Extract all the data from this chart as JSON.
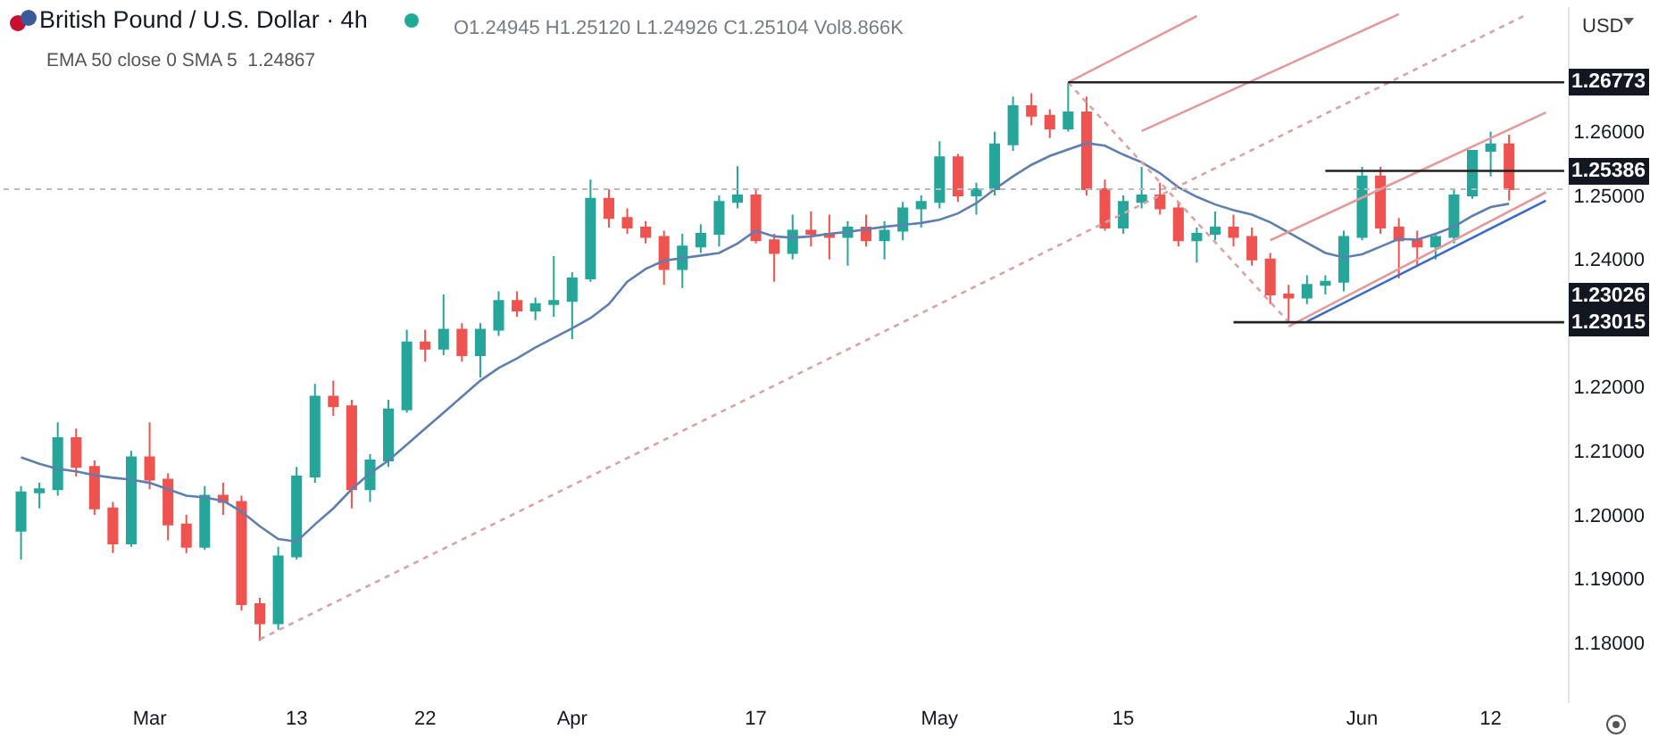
{
  "chart_data": {
    "type": "candlestick",
    "title": "British Pound / U.S. Dollar · 4h",
    "ylabel": "USD",
    "annotations": [
      "O1.24945 H1.25120 L1.24926 C1.25104 Vol8.866K",
      "EMA 50 close 0 SMA 5  1.24867"
    ],
    "categories": [
      null,
      null,
      null,
      null,
      null,
      null,
      null,
      "Mar",
      null,
      null,
      null,
      null,
      null,
      null,
      null,
      "13",
      null,
      null,
      null,
      null,
      null,
      null,
      "22",
      null,
      null,
      null,
      null,
      null,
      null,
      null,
      "Apr",
      null,
      null,
      null,
      null,
      null,
      null,
      null,
      null,
      null,
      "17",
      null,
      null,
      null,
      null,
      null,
      null,
      null,
      null,
      null,
      "May",
      null,
      null,
      null,
      null,
      null,
      null,
      null,
      null,
      null,
      "15",
      null,
      null,
      null,
      null,
      null,
      null,
      null,
      null,
      null,
      null,
      null,
      null,
      "Jun",
      null,
      null,
      null,
      null,
      null,
      null,
      "12",
      null,
      null,
      null,
      null
    ],
    "ohlc": [
      [
        1.1975,
        1.2045,
        1.193,
        1.2035
      ],
      [
        1.2035,
        1.205,
        1.201,
        1.204
      ],
      [
        1.204,
        1.2145,
        1.203,
        1.212
      ],
      [
        1.212,
        1.2135,
        1.206,
        1.2075
      ],
      [
        1.2075,
        1.2085,
        1.2,
        1.201
      ],
      [
        1.201,
        1.202,
        1.194,
        1.1955
      ],
      [
        1.1955,
        1.21,
        1.195,
        1.209
      ],
      [
        1.209,
        1.2145,
        1.204,
        1.2055
      ],
      [
        1.2055,
        1.2065,
        1.196,
        1.1985
      ],
      [
        1.1985,
        1.2,
        1.194,
        1.195
      ],
      [
        1.195,
        1.2045,
        1.1945,
        1.203
      ],
      [
        1.203,
        1.205,
        1.2,
        1.202
      ],
      [
        1.202,
        1.203,
        1.185,
        1.186
      ],
      [
        1.186,
        1.187,
        1.1803,
        1.183
      ],
      [
        1.183,
        1.195,
        1.182,
        1.1935
      ],
      [
        1.1935,
        1.2075,
        1.193,
        1.206
      ],
      [
        1.206,
        1.2205,
        1.205,
        1.2185
      ],
      [
        1.2185,
        1.221,
        1.2155,
        1.217
      ],
      [
        1.217,
        1.218,
        1.201,
        1.204
      ],
      [
        1.204,
        1.2095,
        1.202,
        1.2085
      ],
      [
        1.2085,
        1.218,
        1.2075,
        1.2165
      ],
      [
        1.2165,
        1.229,
        1.216,
        1.227
      ],
      [
        1.227,
        1.229,
        1.224,
        1.226
      ],
      [
        1.226,
        1.2345,
        1.225,
        1.229
      ],
      [
        1.229,
        1.23,
        1.224,
        1.225
      ],
      [
        1.225,
        1.23,
        1.2215,
        1.229
      ],
      [
        1.229,
        1.235,
        1.228,
        1.2335
      ],
      [
        1.2335,
        1.235,
        1.231,
        1.232
      ],
      [
        1.232,
        1.234,
        1.2305,
        1.233
      ],
      [
        1.233,
        1.2405,
        1.231,
        1.2335
      ],
      [
        1.2335,
        1.238,
        1.2275,
        1.237
      ],
      [
        1.237,
        1.2525,
        1.2365,
        1.2495
      ],
      [
        1.2495,
        1.251,
        1.245,
        1.2465
      ],
      [
        1.2465,
        1.248,
        1.244,
        1.245
      ],
      [
        1.245,
        1.246,
        1.2425,
        1.2435
      ],
      [
        1.2435,
        1.2445,
        1.236,
        1.2385
      ],
      [
        1.2385,
        1.244,
        1.2355,
        1.242
      ],
      [
        1.242,
        1.2455,
        1.241,
        1.244
      ],
      [
        1.244,
        1.25,
        1.242,
        1.249
      ],
      [
        1.249,
        1.2546,
        1.248,
        1.25
      ],
      [
        1.25,
        1.251,
        1.2425,
        1.243
      ],
      [
        1.243,
        1.244,
        1.2365,
        1.241
      ],
      [
        1.241,
        1.247,
        1.24,
        1.2445
      ],
      [
        1.2445,
        1.2475,
        1.242,
        1.244
      ],
      [
        1.244,
        1.247,
        1.24,
        1.2435
      ],
      [
        1.2435,
        1.246,
        1.239,
        1.245
      ],
      [
        1.245,
        1.247,
        1.242,
        1.243
      ],
      [
        1.243,
        1.246,
        1.24,
        1.2445
      ],
      [
        1.2445,
        1.249,
        1.243,
        1.248
      ],
      [
        1.248,
        1.25,
        1.245,
        1.249
      ],
      [
        1.249,
        1.2585,
        1.248,
        1.256
      ],
      [
        1.256,
        1.2565,
        1.249,
        1.25
      ],
      [
        1.25,
        1.252,
        1.247,
        1.251
      ],
      [
        1.251,
        1.26,
        1.25,
        1.258
      ],
      [
        1.258,
        1.2655,
        1.257,
        1.264
      ],
      [
        1.264,
        1.266,
        1.261,
        1.2625
      ],
      [
        1.2625,
        1.2635,
        1.259,
        1.2605
      ],
      [
        1.2605,
        1.26773,
        1.26,
        1.263
      ],
      [
        1.263,
        1.2655,
        1.25,
        1.251
      ],
      [
        1.251,
        1.2525,
        1.2445,
        1.245
      ],
      [
        1.245,
        1.25,
        1.244,
        1.249
      ],
      [
        1.249,
        1.2545,
        1.248,
        1.25
      ],
      [
        1.25,
        1.252,
        1.247,
        1.248
      ],
      [
        1.248,
        1.249,
        1.242,
        1.243
      ],
      [
        1.243,
        1.245,
        1.2395,
        1.244
      ],
      [
        1.244,
        1.2475,
        1.243,
        1.245
      ],
      [
        1.245,
        1.247,
        1.242,
        1.2435
      ],
      [
        1.2435,
        1.245,
        1.239,
        1.24
      ],
      [
        1.24,
        1.241,
        1.233,
        1.2345
      ],
      [
        1.2345,
        1.236,
        1.23015,
        1.234
      ],
      [
        1.234,
        1.2375,
        1.233,
        1.236
      ],
      [
        1.236,
        1.2375,
        1.2345,
        1.2365
      ],
      [
        1.2365,
        1.2445,
        1.235,
        1.2435
      ],
      [
        1.2435,
        1.2545,
        1.243,
        1.253
      ],
      [
        1.253,
        1.2545,
        1.244,
        1.245
      ],
      [
        1.245,
        1.2465,
        1.237,
        1.243
      ],
      [
        1.243,
        1.2445,
        1.239,
        1.242
      ],
      [
        1.242,
        1.244,
        1.24,
        1.2435
      ],
      [
        1.2435,
        1.251,
        1.2425,
        1.25
      ],
      [
        1.25,
        1.257,
        1.2495,
        1.257
      ],
      [
        1.257,
        1.26,
        1.253,
        1.258
      ],
      [
        1.258,
        1.2595,
        1.2492,
        1.251
      ],
      null,
      null,
      null
    ],
    "colors": [
      "#26a69a",
      "#26a69a",
      "#26a69a",
      "#ef5350",
      "#ef5350",
      "#ef5350",
      "#26a69a",
      "#ef5350",
      "#ef5350",
      "#ef5350",
      "#26a69a",
      "#ef5350",
      "#ef5350",
      "#ef5350",
      "#26a69a",
      "#26a69a",
      "#26a69a",
      "#ef5350",
      "#ef5350",
      "#26a69a",
      "#26a69a",
      "#26a69a",
      "#ef5350",
      "#26a69a",
      "#ef5350",
      "#26a69a",
      "#26a69a",
      "#ef5350",
      "#26a69a",
      "#26a69a",
      "#26a69a",
      "#26a69a",
      "#ef5350",
      "#ef5350",
      "#ef5350",
      "#ef5350",
      "#26a69a",
      "#26a69a",
      "#26a69a",
      "#26a69a",
      "#ef5350",
      "#ef5350",
      "#26a69a",
      "#ef5350",
      "#ef5350",
      "#26a69a",
      "#ef5350",
      "#26a69a",
      "#26a69a",
      "#26a69a",
      "#26a69a",
      "#ef5350",
      "#26a69a",
      "#26a69a",
      "#26a69a",
      "#ef5350",
      "#ef5350",
      "#26a69a",
      "#ef5350",
      "#ef5350",
      "#26a69a",
      "#26a69a",
      "#ef5350",
      "#ef5350",
      "#26a69a",
      "#26a69a",
      "#ef5350",
      "#ef5350",
      "#ef5350",
      "#ef5350",
      "#26a69a",
      "#26a69a",
      "#26a69a",
      "#26a69a",
      "#ef5350",
      "#ef5350",
      "#ef5350",
      "#26a69a",
      "#26a69a",
      "#26a69a",
      "#26a69a",
      "#ef5350",
      null,
      null,
      null
    ],
    "series": [
      {
        "type": "line",
        "color": "#5f7fae",
        "values": [
          1.209,
          1.208,
          1.2072,
          1.2068,
          1.2062,
          1.2058,
          1.2055,
          1.205,
          1.204,
          1.203,
          1.2027,
          1.2022,
          1.2005,
          1.1982,
          1.1962,
          1.1958,
          1.1985,
          1.201,
          1.204,
          1.2065,
          1.2085,
          1.211,
          1.2135,
          1.216,
          1.2185,
          1.221,
          1.223,
          1.2245,
          1.2262,
          1.2277,
          1.2292,
          1.2308,
          1.233,
          1.2365,
          1.2385,
          1.2398,
          1.2402,
          1.2406,
          1.241,
          1.2425,
          1.2445,
          1.2436,
          1.2434,
          1.2436,
          1.244,
          1.2443,
          1.2447,
          1.2451,
          1.2454,
          1.2457,
          1.2462,
          1.2472,
          1.2488,
          1.251,
          1.253,
          1.2548,
          1.2562,
          1.2572,
          1.2582,
          1.2578,
          1.2564,
          1.2552,
          1.2535,
          1.2513,
          1.2498,
          1.2486,
          1.2477,
          1.247,
          1.2458,
          1.2442,
          1.2426,
          1.241,
          1.2403,
          1.2408,
          1.242,
          1.2432,
          1.2431,
          1.244,
          1.2451,
          1.2468,
          1.2482,
          1.2487,
          null,
          null,
          null
        ]
      },
      {
        "type": "line",
        "color": "#d9a3a3",
        "line_style": "dotted",
        "values": [
          null,
          null,
          null,
          null,
          null,
          null,
          null,
          null,
          null,
          null,
          null,
          null,
          null,
          1.1805,
          null,
          null,
          null,
          null,
          null,
          null,
          null,
          null,
          null,
          null,
          null,
          null,
          null,
          null,
          null,
          null,
          null,
          null,
          null,
          null,
          null,
          null,
          null,
          null,
          null,
          null,
          null,
          null,
          null,
          null,
          null,
          null,
          null,
          null,
          null,
          null,
          null,
          null,
          null,
          null,
          null,
          null,
          null,
          null,
          null,
          null,
          null,
          null,
          null,
          null,
          null,
          null,
          null,
          null,
          null,
          null,
          null,
          null,
          null,
          null,
          null,
          null,
          null,
          null,
          null,
          null,
          null,
          null,
          1.2784,
          null,
          null
        ]
      },
      {
        "type": "line",
        "color": "#d9a3a3",
        "line_style": "dotted",
        "values": [
          null,
          null,
          null,
          null,
          null,
          null,
          null,
          null,
          null,
          null,
          null,
          null,
          null,
          null,
          null,
          null,
          null,
          null,
          null,
          null,
          null,
          null,
          null,
          null,
          null,
          null,
          null,
          null,
          null,
          null,
          null,
          null,
          null,
          null,
          null,
          null,
          null,
          null,
          null,
          null,
          null,
          null,
          null,
          null,
          null,
          null,
          null,
          null,
          null,
          null,
          null,
          null,
          null,
          null,
          null,
          null,
          null,
          1.2677,
          null,
          null,
          null,
          null,
          null,
          null,
          null,
          null,
          null,
          null,
          null,
          1.2302,
          null,
          null,
          null,
          null,
          null,
          null,
          null,
          null,
          null,
          null,
          null,
          null,
          null,
          null,
          null
        ]
      },
      {
        "type": "line",
        "color": "#e39a9a",
        "line_style": "solid",
        "values": [
          null,
          null,
          null,
          null,
          null,
          null,
          null,
          null,
          null,
          null,
          null,
          null,
          null,
          null,
          null,
          null,
          null,
          null,
          null,
          null,
          null,
          null,
          null,
          null,
          null,
          null,
          null,
          null,
          null,
          null,
          null,
          null,
          null,
          null,
          null,
          null,
          null,
          null,
          null,
          null,
          null,
          null,
          null,
          null,
          null,
          null,
          null,
          null,
          null,
          null,
          null,
          null,
          null,
          null,
          null,
          null,
          null,
          1.2677,
          null,
          null,
          null,
          null,
          null,
          null,
          1.2781,
          null,
          null,
          null,
          null,
          null,
          null,
          null,
          null,
          null,
          null,
          null,
          null,
          null,
          null,
          null,
          null,
          null,
          null,
          null,
          null
        ]
      },
      {
        "type": "line",
        "color": "#e39a9a",
        "line_style": "solid",
        "values": [
          null,
          null,
          null,
          null,
          null,
          null,
          null,
          null,
          null,
          null,
          null,
          null,
          null,
          null,
          null,
          null,
          null,
          null,
          null,
          null,
          null,
          null,
          null,
          null,
          null,
          null,
          null,
          null,
          null,
          null,
          null,
          null,
          null,
          null,
          null,
          null,
          null,
          null,
          null,
          null,
          null,
          null,
          null,
          null,
          null,
          null,
          null,
          null,
          null,
          null,
          null,
          null,
          null,
          null,
          null,
          null,
          null,
          null,
          null,
          null,
          null,
          1.2601,
          null,
          null,
          null,
          null,
          null,
          null,
          null,
          null,
          null,
          null,
          null,
          null,
          null,
          1.2784,
          null,
          null,
          null,
          null,
          null,
          null,
          null,
          null,
          null
        ]
      },
      {
        "type": "line",
        "color": "#e39a9a",
        "line_style": "solid",
        "values": [
          null,
          null,
          null,
          null,
          null,
          null,
          null,
          null,
          null,
          null,
          null,
          null,
          null,
          null,
          null,
          null,
          null,
          null,
          null,
          null,
          null,
          null,
          null,
          null,
          null,
          null,
          null,
          null,
          null,
          null,
          null,
          null,
          null,
          null,
          null,
          null,
          null,
          null,
          null,
          null,
          null,
          null,
          null,
          null,
          null,
          null,
          null,
          null,
          null,
          null,
          null,
          null,
          null,
          null,
          null,
          null,
          null,
          null,
          null,
          null,
          null,
          null,
          null,
          null,
          null,
          null,
          null,
          null,
          1.243,
          null,
          null,
          null,
          null,
          null,
          null,
          null,
          null,
          null,
          null,
          null,
          null,
          null,
          null,
          1.263,
          null
        ]
      },
      {
        "type": "line",
        "color": "#e39a9a",
        "line_style": "solid",
        "values": [
          null,
          null,
          null,
          null,
          null,
          null,
          null,
          null,
          null,
          null,
          null,
          null,
          null,
          null,
          null,
          null,
          null,
          null,
          null,
          null,
          null,
          null,
          null,
          null,
          null,
          null,
          null,
          null,
          null,
          null,
          null,
          null,
          null,
          null,
          null,
          null,
          null,
          null,
          null,
          null,
          null,
          null,
          null,
          null,
          null,
          null,
          null,
          null,
          null,
          null,
          null,
          null,
          null,
          null,
          null,
          null,
          null,
          null,
          null,
          null,
          null,
          null,
          null,
          null,
          null,
          null,
          null,
          null,
          null,
          1.2295,
          null,
          null,
          null,
          null,
          null,
          null,
          null,
          null,
          null,
          null,
          null,
          null,
          null,
          1.2505,
          null
        ]
      },
      {
        "type": "line",
        "name": "1.23026",
        "color": "#3b6bc4",
        "line_style": "solid",
        "values": [
          null,
          null,
          null,
          null,
          null,
          null,
          null,
          null,
          null,
          null,
          null,
          null,
          null,
          null,
          null,
          null,
          null,
          null,
          null,
          null,
          null,
          null,
          null,
          null,
          null,
          null,
          null,
          null,
          null,
          null,
          null,
          null,
          null,
          null,
          null,
          null,
          null,
          null,
          null,
          null,
          null,
          null,
          null,
          null,
          null,
          null,
          null,
          null,
          null,
          null,
          null,
          null,
          null,
          null,
          null,
          null,
          null,
          null,
          null,
          null,
          null,
          null,
          null,
          null,
          null,
          null,
          null,
          null,
          null,
          null,
          1.23026,
          null,
          null,
          null,
          null,
          null,
          null,
          null,
          null,
          null,
          null,
          null,
          null,
          1.2492,
          null
        ]
      },
      {
        "type": "line",
        "name": "1.26773",
        "color": "#222222",
        "line_style": "solid",
        "values": [
          null,
          null,
          null,
          null,
          null,
          null,
          null,
          null,
          null,
          null,
          null,
          null,
          null,
          null,
          null,
          null,
          null,
          null,
          null,
          null,
          null,
          null,
          null,
          null,
          null,
          null,
          null,
          null,
          null,
          null,
          null,
          null,
          null,
          null,
          null,
          null,
          null,
          null,
          null,
          null,
          null,
          null,
          null,
          null,
          null,
          null,
          null,
          null,
          null,
          null,
          null,
          null,
          null,
          null,
          null,
          null,
          null,
          1.26773,
          null,
          null,
          null,
          null,
          null,
          null,
          null,
          null,
          null,
          null,
          null,
          null,
          null,
          null,
          null,
          null,
          null,
          null,
          null,
          null,
          null,
          null,
          null,
          null,
          null,
          null,
          1.26773
        ]
      },
      {
        "type": "line",
        "name": "1.25386",
        "color": "#222222",
        "line_style": "solid",
        "values": [
          null,
          null,
          null,
          null,
          null,
          null,
          null,
          null,
          null,
          null,
          null,
          null,
          null,
          null,
          null,
          null,
          null,
          null,
          null,
          null,
          null,
          null,
          null,
          null,
          null,
          null,
          null,
          null,
          null,
          null,
          null,
          null,
          null,
          null,
          null,
          null,
          null,
          null,
          null,
          null,
          null,
          null,
          null,
          null,
          null,
          null,
          null,
          null,
          null,
          null,
          null,
          null,
          null,
          null,
          null,
          null,
          null,
          null,
          null,
          null,
          null,
          null,
          null,
          null,
          null,
          null,
          null,
          null,
          null,
          null,
          null,
          1.25386,
          null,
          null,
          null,
          null,
          null,
          null,
          null,
          null,
          null,
          null,
          null,
          null,
          1.25386
        ]
      },
      {
        "type": "line",
        "name": "1.23015",
        "color": "#222222",
        "line_style": "solid",
        "values": [
          null,
          null,
          null,
          null,
          null,
          null,
          null,
          null,
          null,
          null,
          null,
          null,
          null,
          null,
          null,
          null,
          null,
          null,
          null,
          null,
          null,
          null,
          null,
          null,
          null,
          null,
          null,
          null,
          null,
          null,
          null,
          null,
          null,
          null,
          null,
          null,
          null,
          null,
          null,
          null,
          null,
          null,
          null,
          null,
          null,
          null,
          null,
          null,
          null,
          null,
          null,
          null,
          null,
          null,
          null,
          null,
          null,
          null,
          null,
          null,
          null,
          null,
          null,
          null,
          null,
          null,
          1.23015,
          null,
          null,
          null,
          null,
          null,
          null,
          null,
          null,
          null,
          null,
          null,
          null,
          null,
          null,
          null,
          null,
          null,
          1.23015
        ]
      }
    ],
    "ref_lines": [
      {
        "axis": "y",
        "value": 1.251,
        "color": "#bbbbbb",
        "line_style": "dotted"
      }
    ],
    "ylim": [
      1.1705,
      1.2795
    ],
    "yticks": [
      {
        "value": 1.18,
        "label": "1.18000"
      },
      {
        "value": 1.19,
        "label": "1.19000"
      },
      {
        "value": 1.2,
        "label": "1.20000"
      },
      {
        "value": 1.21,
        "label": "1.21000"
      },
      {
        "value": 1.22,
        "label": "1.22000"
      },
      {
        "value": 1.24,
        "label": "1.24000"
      },
      {
        "value": 1.25,
        "label": "1.25000"
      },
      {
        "value": 1.26,
        "label": "1.26000"
      }
    ],
    "grid": false,
    "legend": "right"
  }
}
